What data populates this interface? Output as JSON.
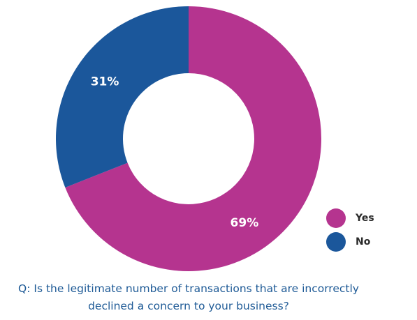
{
  "chart_data": {
    "type": "pie",
    "donut": true,
    "categories": [
      "Yes",
      "No"
    ],
    "values": [
      69,
      31
    ],
    "value_labels": [
      "69%",
      "31%"
    ],
    "colors": [
      "#b5348f",
      "#1b579b"
    ],
    "legend": {
      "position": "bottom-right",
      "entries": [
        "Yes",
        "No"
      ]
    }
  },
  "caption": {
    "line1": "Q: Is the legitimate number of transactions that are incorrectly",
    "line2": "declined a concern to your business?"
  }
}
